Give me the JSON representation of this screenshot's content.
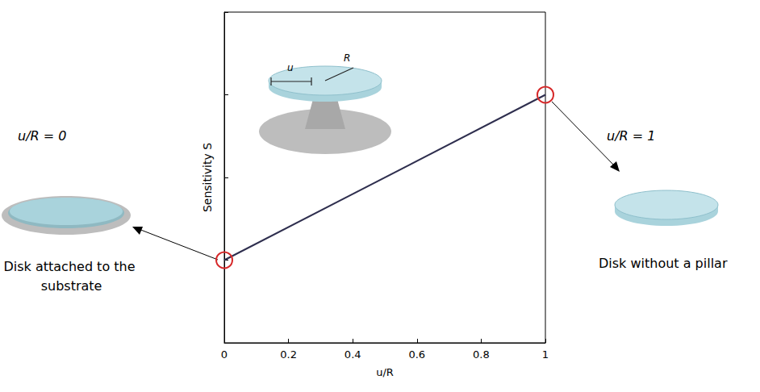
{
  "chart_data": {
    "type": "line",
    "x": [
      0,
      1
    ],
    "values": [
      1,
      3
    ],
    "color": "#2e2e4e",
    "marker": "circle",
    "xlim": [
      0,
      1
    ],
    "xticks": [
      0,
      0.2,
      0.4,
      0.6,
      0.8,
      1
    ],
    "ylim": [
      0,
      4
    ],
    "yticks": [
      0,
      1,
      2,
      3,
      4
    ],
    "tick_labels": "x",
    "xlabel": "u/R",
    "ylabel": "Sensitivity S",
    "annotations": [
      "u/R = 0",
      "Disk attached to the substrate",
      "u/R = 1",
      "Disk without a pillar",
      "u",
      "R"
    ]
  }
}
